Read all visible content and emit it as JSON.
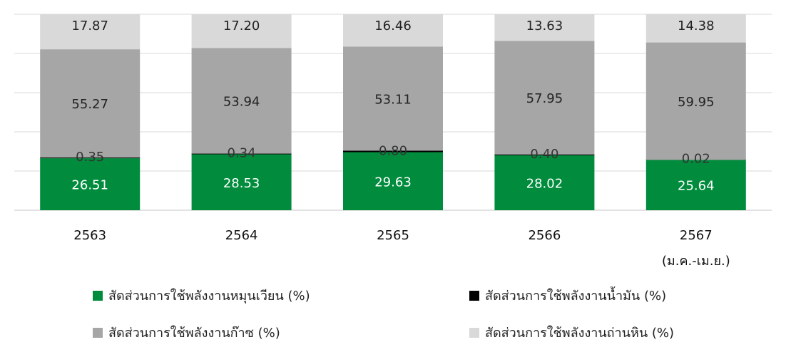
{
  "chart_data": {
    "type": "bar",
    "stacked": true,
    "categories": [
      "2563",
      "2564",
      "2565",
      "2566",
      "2567"
    ],
    "category_notes": [
      "",
      "",
      "",
      "",
      "(ม.ค.-เม.ย.)"
    ],
    "series": [
      {
        "name": "สัดส่วนการใช้พลังงานหมุนเวียน (%)",
        "color": "#008c3c",
        "label_color": "#ffffff",
        "values": [
          26.51,
          28.53,
          29.63,
          28.02,
          25.64
        ]
      },
      {
        "name": "สัดส่วนการใช้พลังงานน้ำมัน (%)",
        "color": "#000000",
        "label_color": "#333333",
        "values": [
          0.35,
          0.34,
          0.8,
          0.4,
          0.02
        ]
      },
      {
        "name": "สัดส่วนการใช้พลังงานก๊าซ (%)",
        "color": "#a6a6a6",
        "label_color": "#222222",
        "values": [
          55.27,
          53.94,
          53.11,
          57.95,
          59.95
        ]
      },
      {
        "name": "สัดส่วนการใช้พลังงานถ่านหิน (%)",
        "color": "#d9d9d9",
        "label_color": "#222222",
        "values": [
          17.87,
          17.2,
          16.46,
          13.63,
          14.38
        ]
      }
    ],
    "value_labels": [
      [
        "26.51",
        "28.53",
        "29.63",
        "28.02",
        "25.64"
      ],
      [
        "0.35",
        "0.34",
        "0.80",
        "0.40",
        "0.02"
      ],
      [
        "55.27",
        "53.94",
        "53.11",
        "57.95",
        "59.95"
      ],
      [
        "17.87",
        "17.20",
        "16.46",
        "13.63",
        "14.38"
      ]
    ],
    "ylim": [
      0,
      100
    ],
    "grid": true,
    "legend_position": "bottom",
    "gridline_color": "#d9d9d9"
  }
}
